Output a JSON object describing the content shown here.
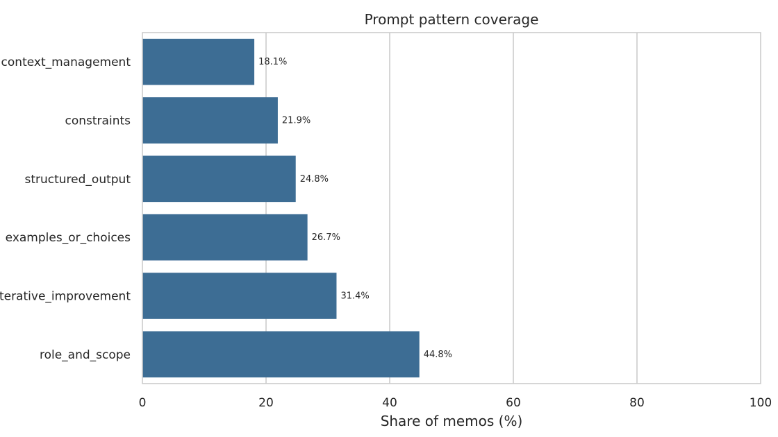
{
  "chart_data": {
    "type": "bar",
    "orientation": "horizontal",
    "title": "Prompt pattern coverage",
    "xlabel": "Share of memos (%)",
    "ylabel": "",
    "categories": [
      "context_management",
      "constraints",
      "structured_output",
      "examples_or_choices",
      "iterative_improvement",
      "role_and_scope"
    ],
    "values": [
      18.1,
      21.9,
      24.8,
      26.7,
      31.4,
      44.8
    ],
    "data_labels": [
      "18.1%",
      "21.9%",
      "24.8%",
      "26.7%",
      "31.4%",
      "44.8%"
    ],
    "xlim": [
      0,
      100
    ],
    "xticks": [
      0,
      20,
      40,
      60,
      80,
      100
    ],
    "grid": true,
    "bar_color": "#3d6d94",
    "grid_color": "#cccccc"
  }
}
